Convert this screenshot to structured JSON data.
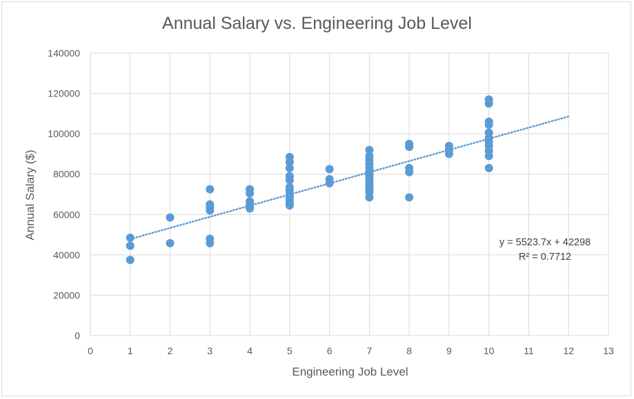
{
  "chart_data": {
    "type": "scatter",
    "title": "Annual Salary vs. Engineering Job Level",
    "xlabel": "Engineering Job Level",
    "ylabel": "Annual Salary ($)",
    "xlim": [
      0,
      13
    ],
    "ylim": [
      0,
      140000
    ],
    "xticks": [
      0,
      1,
      2,
      3,
      4,
      5,
      6,
      7,
      8,
      9,
      10,
      11,
      12,
      13
    ],
    "yticks": [
      0,
      20000,
      40000,
      60000,
      80000,
      100000,
      120000,
      140000
    ],
    "grid": true,
    "marker_color": "#5b9bd5",
    "points": [
      {
        "x": 1,
        "y": 48500
      },
      {
        "x": 1,
        "y": 44500
      },
      {
        "x": 1,
        "y": 37500
      },
      {
        "x": 2,
        "y": 58500
      },
      {
        "x": 2,
        "y": 45800
      },
      {
        "x": 3,
        "y": 72500
      },
      {
        "x": 3,
        "y": 65000
      },
      {
        "x": 3,
        "y": 63500
      },
      {
        "x": 3,
        "y": 62000
      },
      {
        "x": 3,
        "y": 48000
      },
      {
        "x": 3,
        "y": 45800
      },
      {
        "x": 4,
        "y": 72500
      },
      {
        "x": 4,
        "y": 70500
      },
      {
        "x": 4,
        "y": 66500
      },
      {
        "x": 4,
        "y": 65000
      },
      {
        "x": 4,
        "y": 64000
      },
      {
        "x": 4,
        "y": 63000
      },
      {
        "x": 5,
        "y": 88500
      },
      {
        "x": 5,
        "y": 86000
      },
      {
        "x": 5,
        "y": 83000
      },
      {
        "x": 5,
        "y": 79000
      },
      {
        "x": 5,
        "y": 77000
      },
      {
        "x": 5,
        "y": 73500
      },
      {
        "x": 5,
        "y": 72000
      },
      {
        "x": 5,
        "y": 70000
      },
      {
        "x": 5,
        "y": 68500
      },
      {
        "x": 5,
        "y": 67000
      },
      {
        "x": 5,
        "y": 65500
      },
      {
        "x": 5,
        "y": 64500
      },
      {
        "x": 6,
        "y": 82500
      },
      {
        "x": 6,
        "y": 77500
      },
      {
        "x": 6,
        "y": 75500
      },
      {
        "x": 7,
        "y": 92000
      },
      {
        "x": 7,
        "y": 89000
      },
      {
        "x": 7,
        "y": 87000
      },
      {
        "x": 7,
        "y": 85000
      },
      {
        "x": 7,
        "y": 83000
      },
      {
        "x": 7,
        "y": 81000
      },
      {
        "x": 7,
        "y": 79500
      },
      {
        "x": 7,
        "y": 78000
      },
      {
        "x": 7,
        "y": 76500
      },
      {
        "x": 7,
        "y": 75000
      },
      {
        "x": 7,
        "y": 73500
      },
      {
        "x": 7,
        "y": 72000
      },
      {
        "x": 7,
        "y": 71000
      },
      {
        "x": 7,
        "y": 68500
      },
      {
        "x": 8,
        "y": 95000
      },
      {
        "x": 8,
        "y": 93500
      },
      {
        "x": 8,
        "y": 83000
      },
      {
        "x": 8,
        "y": 81000
      },
      {
        "x": 8,
        "y": 68500
      },
      {
        "x": 9,
        "y": 94000
      },
      {
        "x": 9,
        "y": 92000
      },
      {
        "x": 9,
        "y": 90000
      },
      {
        "x": 10,
        "y": 117000
      },
      {
        "x": 10,
        "y": 115000
      },
      {
        "x": 10,
        "y": 106000
      },
      {
        "x": 10,
        "y": 104500
      },
      {
        "x": 10,
        "y": 100500
      },
      {
        "x": 10,
        "y": 98000
      },
      {
        "x": 10,
        "y": 96000
      },
      {
        "x": 10,
        "y": 94000
      },
      {
        "x": 10,
        "y": 91500
      },
      {
        "x": 10,
        "y": 89000
      },
      {
        "x": 10,
        "y": 83000
      }
    ],
    "trendline": {
      "type": "linear",
      "slope": 5523.7,
      "intercept": 42298,
      "x_range": [
        1,
        12
      ],
      "color": "#5b9bd5",
      "equation": "y = 5523.7x + 42298",
      "r_squared": "R² = 0.7712"
    }
  }
}
